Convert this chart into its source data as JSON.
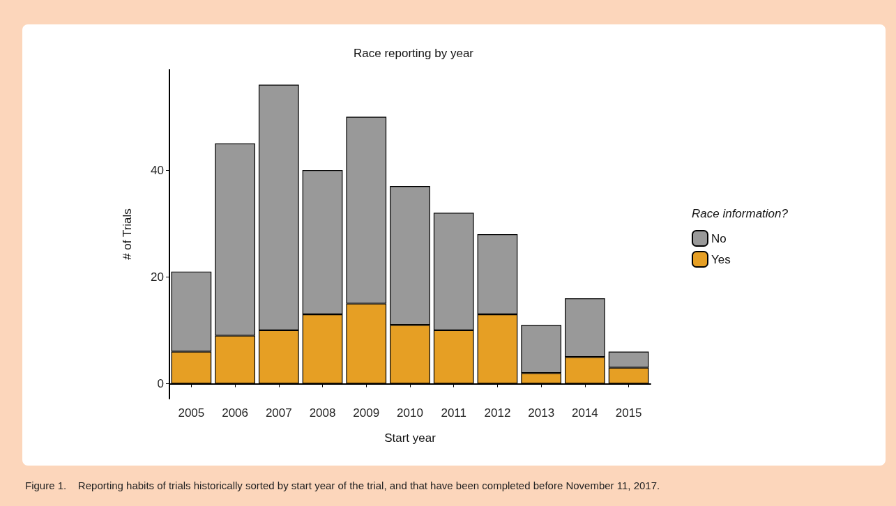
{
  "chart_data": {
    "type": "bar",
    "title": "Race reporting by year",
    "xlabel": "Start year",
    "ylabel": "# of Trials",
    "legend_title": "Race information?",
    "categories": [
      "2005",
      "2006",
      "2007",
      "2008",
      "2009",
      "2010",
      "2011",
      "2012",
      "2013",
      "2014",
      "2015"
    ],
    "series": [
      {
        "name": "Yes",
        "color": "#e69f24",
        "values": [
          6,
          9,
          10,
          13,
          15,
          11,
          10,
          13,
          2,
          5,
          3
        ]
      },
      {
        "name": "No",
        "color": "#999999",
        "values": [
          15,
          36,
          46,
          27,
          35,
          26,
          22,
          15,
          9,
          11,
          3
        ]
      }
    ],
    "stacked": true,
    "ylim": [
      -2.8,
      58.8
    ],
    "yticks": [
      0,
      20,
      40
    ],
    "grid": false,
    "legend": "right",
    "annotations": [
      "Figure 1.    Reporting habits of trials historically sorted by start year of the trial, and that have been completed before November 11, 2017."
    ]
  }
}
